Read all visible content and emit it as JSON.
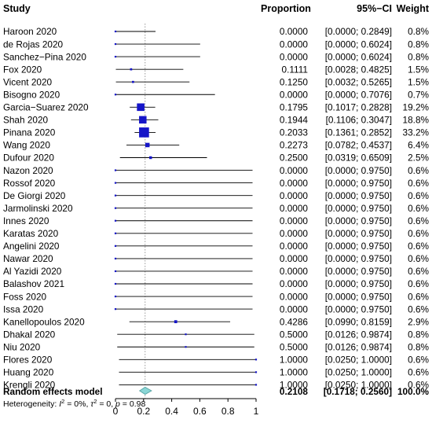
{
  "headers": {
    "study": "Study",
    "proportion": "Proportion",
    "ci": "95%−CI",
    "weight": "Weight"
  },
  "summary": {
    "label": "Random effects model",
    "proportion": "0.2108",
    "ci": "[0.1718; 0.2560]",
    "weight": "100.0%"
  },
  "heterogeneity": {
    "prefix": "Heterogeneity: ",
    "i2_symbol": "I",
    "i2_sup": "2",
    "i2_value": " = 0%, ",
    "tau_symbol": "τ",
    "tau_sup": "2",
    "tau_value": " = 0, ",
    "p_symbol": "p",
    "p_value": " = 0.98"
  },
  "colors": {
    "point": "#1515c8",
    "diamond_fill": "#8ad6d6",
    "diamond_stroke": "#5aa6a6",
    "ref_line": "#999999"
  },
  "chart_data": {
    "type": "forest",
    "xlim": [
      0,
      1
    ],
    "x_ticks": [
      "0",
      "0.2",
      "0.4",
      "0.6",
      "0.8",
      "1"
    ],
    "x_tick_values": [
      0,
      0.2,
      0.4,
      0.6,
      0.8,
      1
    ],
    "reference_line": 0.2108,
    "studies": [
      {
        "study": "Haroon 2020",
        "proportion": 0.0,
        "lower": 0.0,
        "upper": 0.2849,
        "proportion_text": "0.0000",
        "ci_text": "[0.0000; 0.2849]",
        "weight_text": "0.8%",
        "weight": 0.8
      },
      {
        "study": "de Rojas 2020",
        "proportion": 0.0,
        "lower": 0.0,
        "upper": 0.6024,
        "proportion_text": "0.0000",
        "ci_text": "[0.0000; 0.6024]",
        "weight_text": "0.8%",
        "weight": 0.8
      },
      {
        "study": "Sanchez−Pina 2020",
        "proportion": 0.0,
        "lower": 0.0,
        "upper": 0.6024,
        "proportion_text": "0.0000",
        "ci_text": "[0.0000; 0.6024]",
        "weight_text": "0.8%",
        "weight": 0.8
      },
      {
        "study": "Fox 2020",
        "proportion": 0.1111,
        "lower": 0.0028,
        "upper": 0.4825,
        "proportion_text": "0.1111",
        "ci_text": "[0.0028; 0.4825]",
        "weight_text": "1.5%",
        "weight": 1.5
      },
      {
        "study": "Vicent 2020",
        "proportion": 0.125,
        "lower": 0.0032,
        "upper": 0.5265,
        "proportion_text": "0.1250",
        "ci_text": "[0.0032; 0.5265]",
        "weight_text": "1.5%",
        "weight": 1.5
      },
      {
        "study": "Bisogno 2020",
        "proportion": 0.0,
        "lower": 0.0,
        "upper": 0.7076,
        "proportion_text": "0.0000",
        "ci_text": "[0.0000; 0.7076]",
        "weight_text": "0.7%",
        "weight": 0.7
      },
      {
        "study": "Garcia−Suarez 2020",
        "proportion": 0.1795,
        "lower": 0.1017,
        "upper": 0.2828,
        "proportion_text": "0.1795",
        "ci_text": "[0.1017; 0.2828]",
        "weight_text": "19.2%",
        "weight": 19.2
      },
      {
        "study": "Shah 2020",
        "proportion": 0.1944,
        "lower": 0.1106,
        "upper": 0.3047,
        "proportion_text": "0.1944",
        "ci_text": "[0.1106; 0.3047]",
        "weight_text": "18.8%",
        "weight": 18.8
      },
      {
        "study": "Pinana 2020",
        "proportion": 0.2033,
        "lower": 0.1361,
        "upper": 0.2852,
        "proportion_text": "0.2033",
        "ci_text": "[0.1361; 0.2852]",
        "weight_text": "33.2%",
        "weight": 33.2
      },
      {
        "study": "Wang 2020",
        "proportion": 0.2273,
        "lower": 0.0782,
        "upper": 0.4537,
        "proportion_text": "0.2273",
        "ci_text": "[0.0782; 0.4537]",
        "weight_text": "6.4%",
        "weight": 6.4
      },
      {
        "study": "Dufour 2020",
        "proportion": 0.25,
        "lower": 0.0319,
        "upper": 0.6509,
        "proportion_text": "0.2500",
        "ci_text": "[0.0319; 0.6509]",
        "weight_text": "2.5%",
        "weight": 2.5
      },
      {
        "study": "Nazon 2020",
        "proportion": 0.0,
        "lower": 0.0,
        "upper": 0.975,
        "proportion_text": "0.0000",
        "ci_text": "[0.0000; 0.9750]",
        "weight_text": "0.6%",
        "weight": 0.6
      },
      {
        "study": "Rossof 2020",
        "proportion": 0.0,
        "lower": 0.0,
        "upper": 0.975,
        "proportion_text": "0.0000",
        "ci_text": "[0.0000; 0.9750]",
        "weight_text": "0.6%",
        "weight": 0.6
      },
      {
        "study": "De Giorgi 2020",
        "proportion": 0.0,
        "lower": 0.0,
        "upper": 0.975,
        "proportion_text": "0.0000",
        "ci_text": "[0.0000; 0.9750]",
        "weight_text": "0.6%",
        "weight": 0.6
      },
      {
        "study": "Jarmolinski 2020",
        "proportion": 0.0,
        "lower": 0.0,
        "upper": 0.975,
        "proportion_text": "0.0000",
        "ci_text": "[0.0000; 0.9750]",
        "weight_text": "0.6%",
        "weight": 0.6
      },
      {
        "study": "Innes 2020",
        "proportion": 0.0,
        "lower": 0.0,
        "upper": 0.975,
        "proportion_text": "0.0000",
        "ci_text": "[0.0000; 0.9750]",
        "weight_text": "0.6%",
        "weight": 0.6
      },
      {
        "study": "Karatas 2020",
        "proportion": 0.0,
        "lower": 0.0,
        "upper": 0.975,
        "proportion_text": "0.0000",
        "ci_text": "[0.0000; 0.9750]",
        "weight_text": "0.6%",
        "weight": 0.6
      },
      {
        "study": "Angelini 2020",
        "proportion": 0.0,
        "lower": 0.0,
        "upper": 0.975,
        "proportion_text": "0.0000",
        "ci_text": "[0.0000; 0.9750]",
        "weight_text": "0.6%",
        "weight": 0.6
      },
      {
        "study": "Nawar 2020",
        "proportion": 0.0,
        "lower": 0.0,
        "upper": 0.975,
        "proportion_text": "0.0000",
        "ci_text": "[0.0000; 0.9750]",
        "weight_text": "0.6%",
        "weight": 0.6
      },
      {
        "study": "Al Yazidi 2020",
        "proportion": 0.0,
        "lower": 0.0,
        "upper": 0.975,
        "proportion_text": "0.0000",
        "ci_text": "[0.0000; 0.9750]",
        "weight_text": "0.6%",
        "weight": 0.6
      },
      {
        "study": "Balashov 2021",
        "proportion": 0.0,
        "lower": 0.0,
        "upper": 0.975,
        "proportion_text": "0.0000",
        "ci_text": "[0.0000; 0.9750]",
        "weight_text": "0.6%",
        "weight": 0.6
      },
      {
        "study": "Foss 2020",
        "proportion": 0.0,
        "lower": 0.0,
        "upper": 0.975,
        "proportion_text": "0.0000",
        "ci_text": "[0.0000; 0.9750]",
        "weight_text": "0.6%",
        "weight": 0.6
      },
      {
        "study": "Issa 2020",
        "proportion": 0.0,
        "lower": 0.0,
        "upper": 0.975,
        "proportion_text": "0.0000",
        "ci_text": "[0.0000; 0.9750]",
        "weight_text": "0.6%",
        "weight": 0.6
      },
      {
        "study": "Kanellopoulos 2020",
        "proportion": 0.4286,
        "lower": 0.099,
        "upper": 0.8159,
        "proportion_text": "0.4286",
        "ci_text": "[0.0990; 0.8159]",
        "weight_text": "2.9%",
        "weight": 2.9
      },
      {
        "study": "Dhakal 2020",
        "proportion": 0.5,
        "lower": 0.0126,
        "upper": 0.9874,
        "proportion_text": "0.5000",
        "ci_text": "[0.0126; 0.9874]",
        "weight_text": "0.8%",
        "weight": 0.8
      },
      {
        "study": "Niu 2020",
        "proportion": 0.5,
        "lower": 0.0126,
        "upper": 0.9874,
        "proportion_text": "0.5000",
        "ci_text": "[0.0126; 0.9874]",
        "weight_text": "0.8%",
        "weight": 0.8
      },
      {
        "study": "Flores 2020",
        "proportion": 1.0,
        "lower": 0.025,
        "upper": 1.0,
        "proportion_text": "1.0000",
        "ci_text": "[0.0250; 1.0000]",
        "weight_text": "0.6%",
        "weight": 0.6
      },
      {
        "study": "Huang 2020",
        "proportion": 1.0,
        "lower": 0.025,
        "upper": 1.0,
        "proportion_text": "1.0000",
        "ci_text": "[0.0250; 1.0000]",
        "weight_text": "0.6%",
        "weight": 0.6
      },
      {
        "study": "Krengli 2020",
        "proportion": 1.0,
        "lower": 0.025,
        "upper": 1.0,
        "proportion_text": "1.0000",
        "ci_text": "[0.0250; 1.0000]",
        "weight_text": "0.6%",
        "weight": 0.6
      }
    ],
    "pooled": {
      "proportion": 0.2108,
      "lower": 0.1718,
      "upper": 0.256,
      "weight": 100.0
    }
  }
}
